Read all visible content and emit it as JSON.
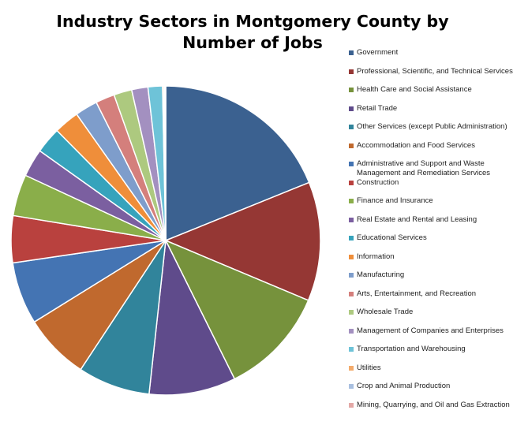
{
  "chart_data": {
    "type": "pie",
    "title": "Industry Sectors in Montgomery County by Number of Jobs",
    "legend_position": "right",
    "slices": [
      {
        "name": "Government",
        "value": 20.0,
        "color": "#3B6190"
      },
      {
        "name": "Professional, Scientific, and Technical Services",
        "value": 13.2,
        "color": "#953734"
      },
      {
        "name": "Health Care and Social Assistance",
        "value": 12.0,
        "color": "#76923C"
      },
      {
        "name": "Retail Trade",
        "value": 9.6,
        "color": "#5F4B8B"
      },
      {
        "name": "Other Services (except Public Administration)",
        "value": 8.0,
        "color": "#31849B"
      },
      {
        "name": "Accommodation and Food Services",
        "value": 7.3,
        "color": "#C0692E"
      },
      {
        "name": "Administrative and Support and Waste Management and Remediation Services",
        "value": 6.9,
        "color": "#4474B3"
      },
      {
        "name": "Construction",
        "value": 5.2,
        "color": "#B9413E"
      },
      {
        "name": "Finance and Insurance",
        "value": 4.6,
        "color": "#8AAE4A"
      },
      {
        "name": "Real Estate and Rental and Leasing",
        "value": 3.1,
        "color": "#7B5FA0"
      },
      {
        "name": "Educational Services",
        "value": 2.9,
        "color": "#36A3BC"
      },
      {
        "name": "Information",
        "value": 2.8,
        "color": "#EF8E3A"
      },
      {
        "name": "Manufacturing",
        "value": 2.5,
        "color": "#7E9DCB"
      },
      {
        "name": "Arts, Entertainment, and Recreation",
        "value": 2.1,
        "color": "#D47F7C"
      },
      {
        "name": "Wholesale Trade",
        "value": 2.0,
        "color": "#ADC97F"
      },
      {
        "name": "Management of Companies and Enterprises",
        "value": 1.8,
        "color": "#A390C0"
      },
      {
        "name": "Transportation and Warehousing",
        "value": 1.6,
        "color": "#6EC3D8"
      },
      {
        "name": "Utilities",
        "value": 0.15,
        "color": "#F3AB6C"
      },
      {
        "name": "Crop and Animal Production",
        "value": 0.12,
        "color": "#A9C0E0"
      },
      {
        "name": "Mining, Quarrying, and Oil and Gas Extraction",
        "value": 0.08,
        "color": "#E3A8A6"
      }
    ]
  }
}
